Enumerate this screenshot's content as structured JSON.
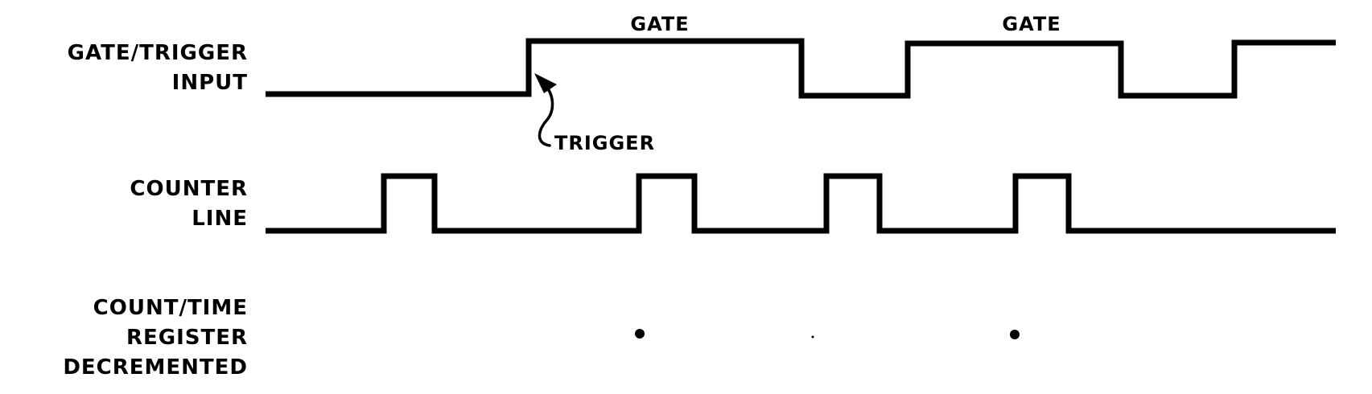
{
  "labels": {
    "gate_trigger_input": [
      "GATE/TRIGGER",
      "INPUT"
    ],
    "counter_line": [
      "COUNTER",
      "LINE"
    ],
    "count_time_register": [
      "COUNT/TIME",
      "REGISTER",
      "DECREMENTED"
    ]
  },
  "annotations": {
    "gate_1": "GATE",
    "gate_2": "GATE",
    "trigger": "TRIGGER"
  },
  "colors": {
    "ink": "#000000",
    "background": "#ffffff"
  }
}
